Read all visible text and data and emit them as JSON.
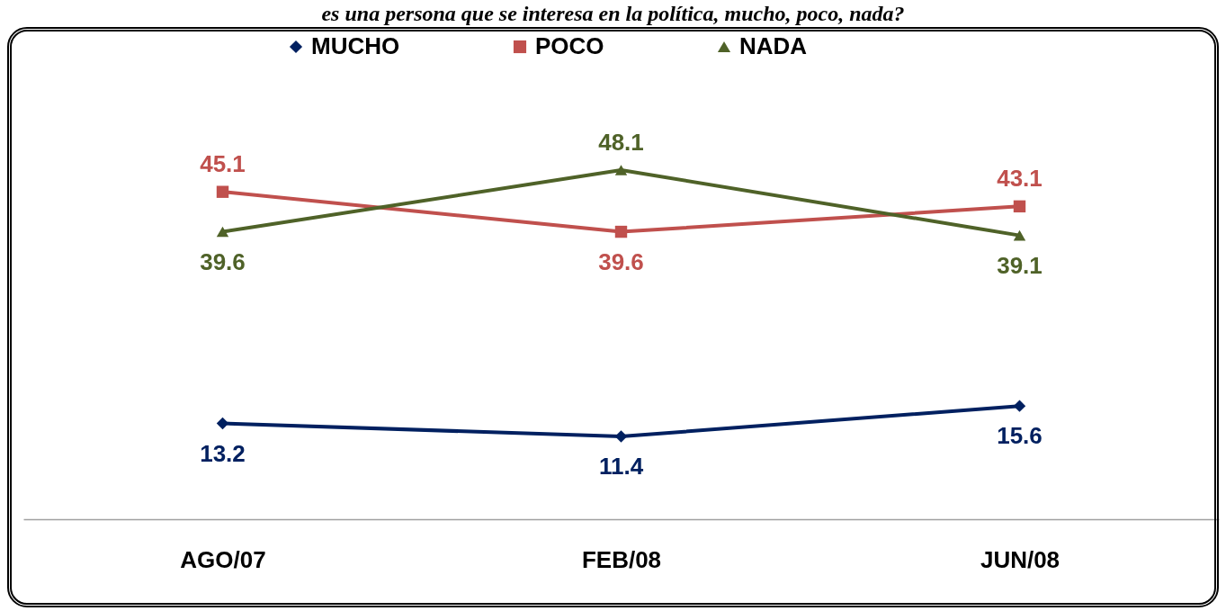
{
  "chart_data": {
    "type": "line",
    "title": "es una persona que se interesa en la política, mucho, poco, nada?",
    "categories": [
      "AGO/07",
      "FEB/08",
      "JUN/08"
    ],
    "legend": "top",
    "data_labels": true,
    "grid": false,
    "tick_labels": "x",
    "series": [
      {
        "name": "MUCHO",
        "color": "#002060",
        "marker": "diamond",
        "values": [
          13.2,
          11.4,
          15.6
        ]
      },
      {
        "name": "POCO",
        "color": "#c0504d",
        "marker": "square",
        "values": [
          45.1,
          39.6,
          43.1
        ]
      },
      {
        "name": "NADA",
        "color": "#4f6228",
        "marker": "triangle",
        "values": [
          39.6,
          48.1,
          39.1
        ]
      }
    ]
  }
}
